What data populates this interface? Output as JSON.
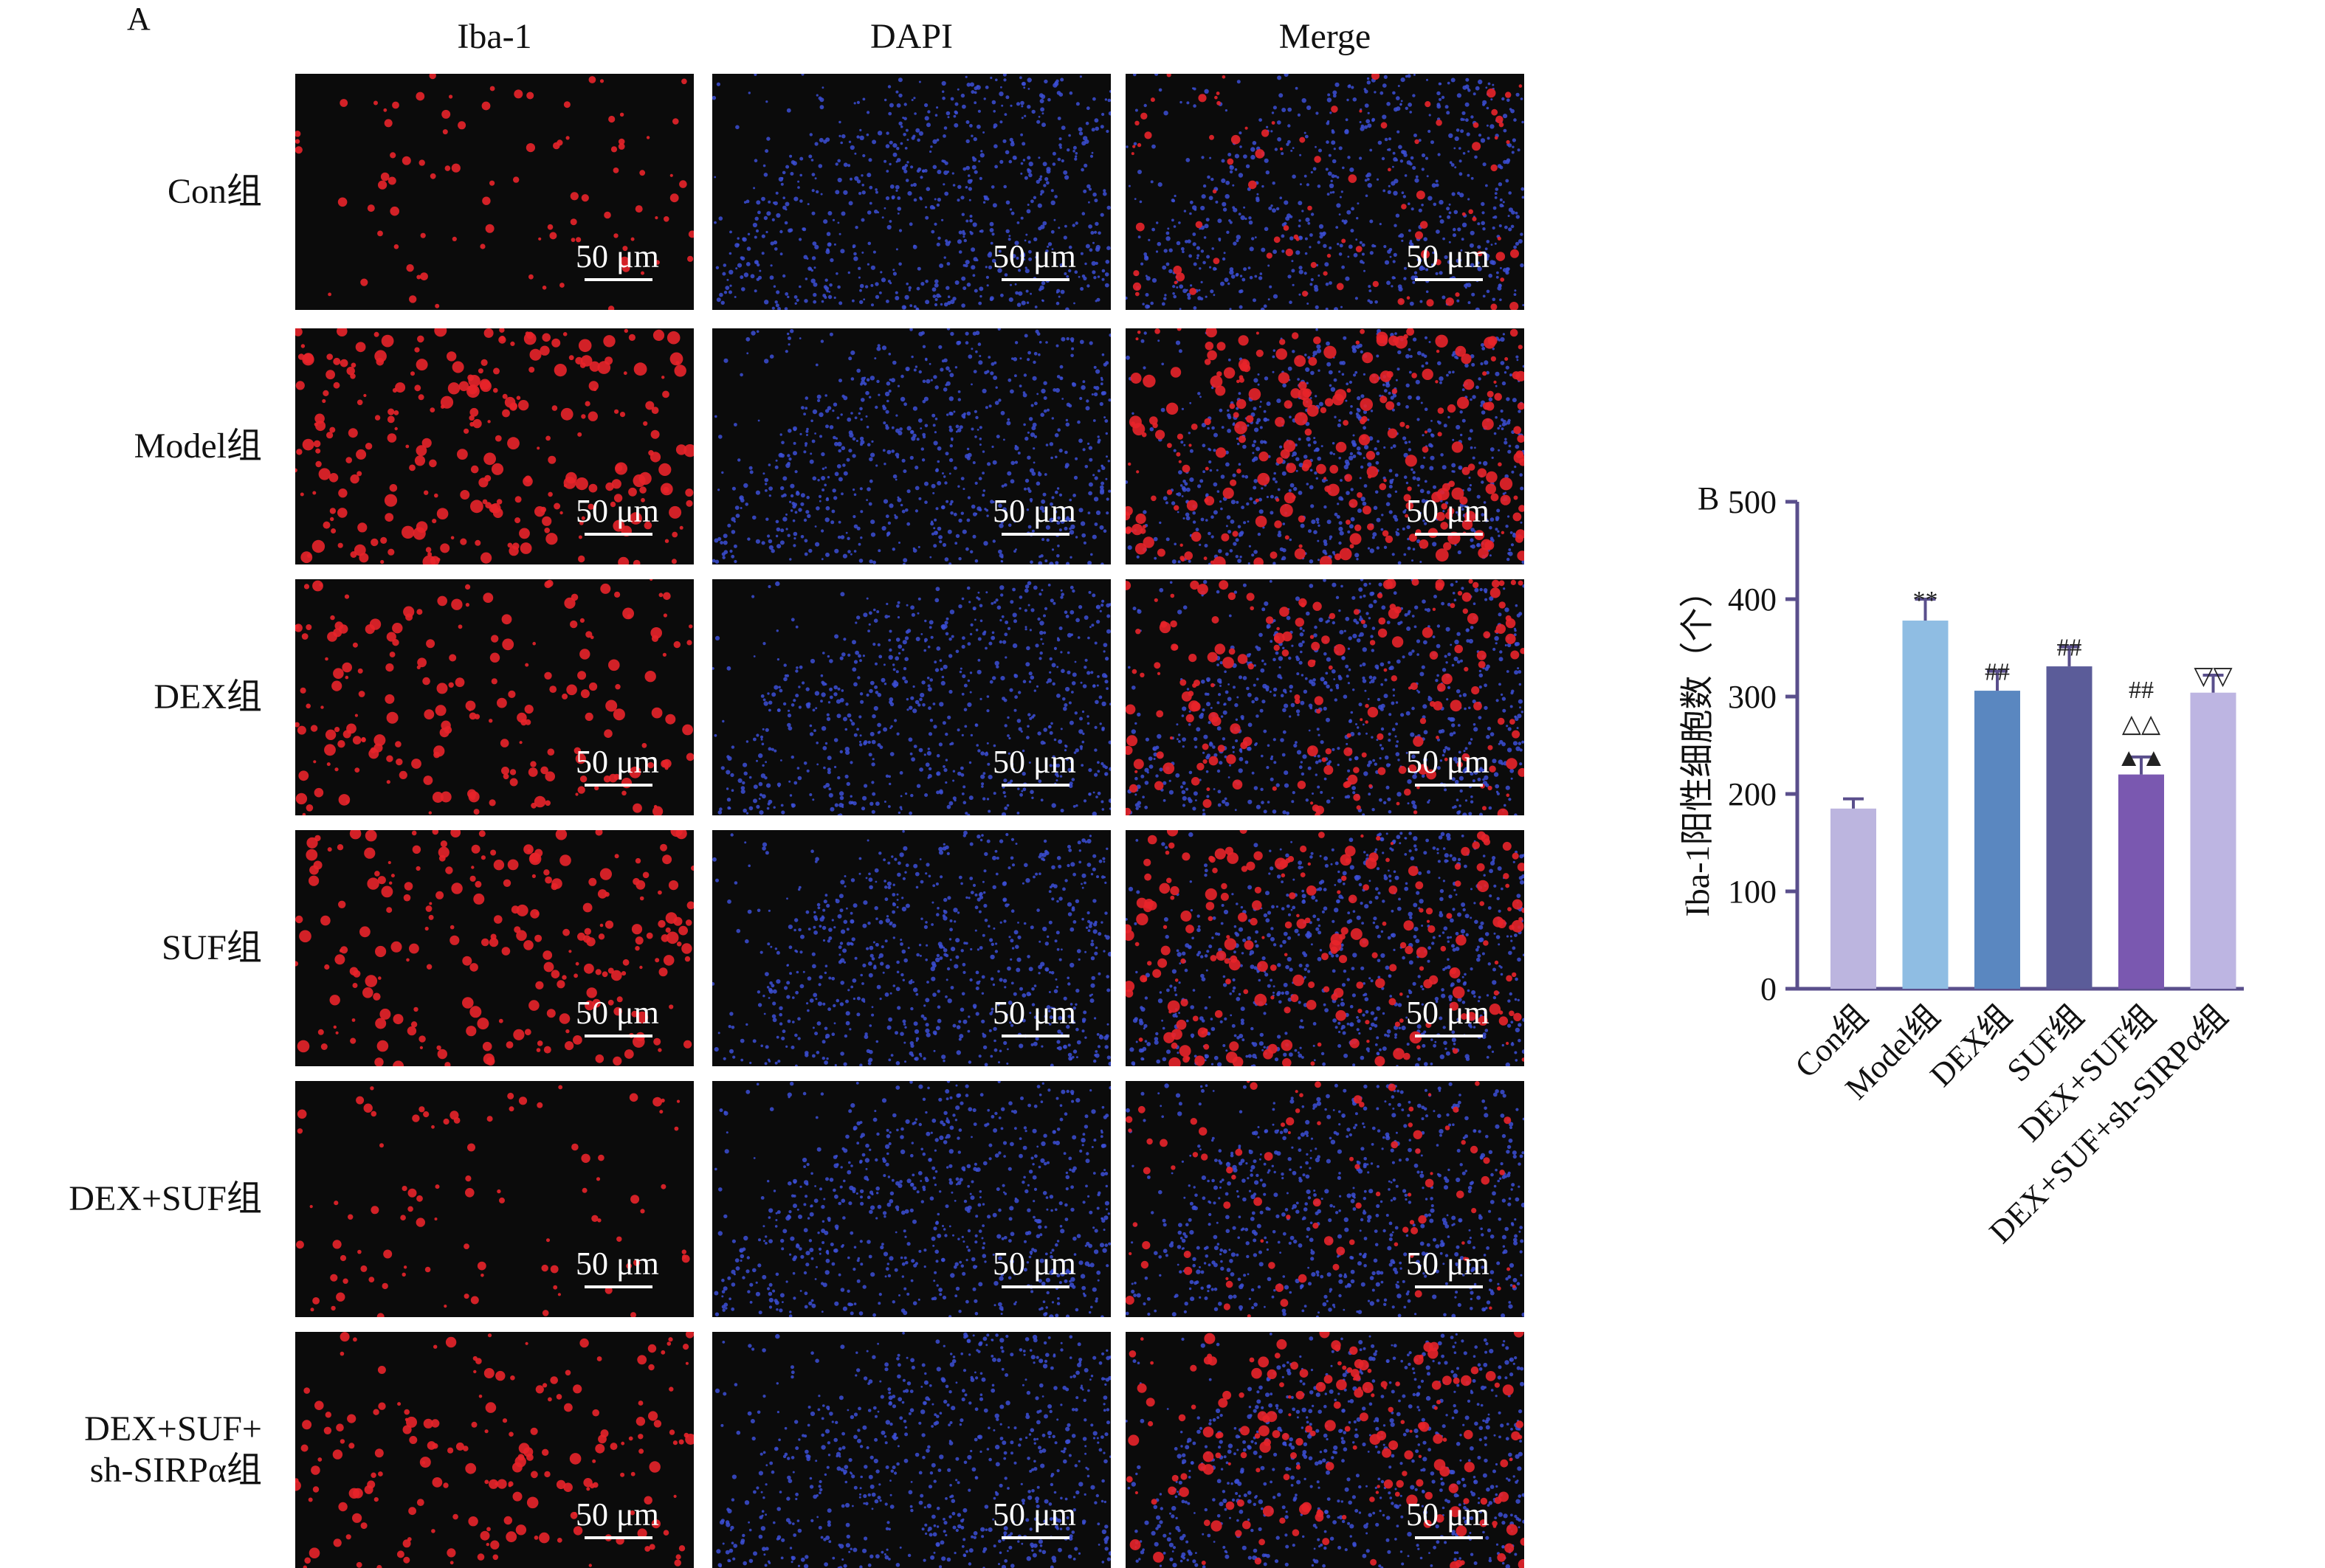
{
  "panel_a_label": "A",
  "panel_b_label": "B",
  "columns": [
    "Iba-1",
    "DAPI",
    "Merge"
  ],
  "rows": [
    {
      "label": "Con组",
      "red_level": 0.35
    },
    {
      "label": "Model组",
      "red_level": 1.0
    },
    {
      "label": "DEX组",
      "red_level": 0.75
    },
    {
      "label": "SUF组",
      "red_level": 0.85
    },
    {
      "label": "DEX+SUF组",
      "red_level": 0.35
    },
    {
      "label": "DEX+SUF+\nsh-SIRPα组",
      "red_level": 0.7
    }
  ],
  "scale_label": "50 μm",
  "colors": {
    "red_stain": "#e8242a",
    "blue_stain": "#3c4fd6",
    "axis": "#5a4f8c"
  },
  "chart_data": {
    "type": "bar",
    "categories": [
      "Con组",
      "Model组",
      "DEX组",
      "SUF组",
      "DEX+SUF组",
      "DEX+SUF+sh-SIRPα组"
    ],
    "values": [
      185,
      378,
      306,
      331,
      220,
      304
    ],
    "errors": [
      10,
      22,
      20,
      20,
      18,
      18
    ],
    "bar_colors": [
      "#bcb5df",
      "#8fbde3",
      "#5a87c0",
      "#5b5c99",
      "#7a58b0",
      "#bdb5e2"
    ],
    "significance": [
      [],
      [
        "**"
      ],
      [
        "##"
      ],
      [
        "##"
      ],
      [
        "##",
        "△△",
        "▲▲"
      ],
      [
        "▽▽"
      ]
    ],
    "ylabel": "Iba-1阳性细胞数（个）",
    "ylim": [
      0,
      500
    ],
    "yticks": [
      0,
      100,
      200,
      300,
      400,
      500
    ]
  }
}
